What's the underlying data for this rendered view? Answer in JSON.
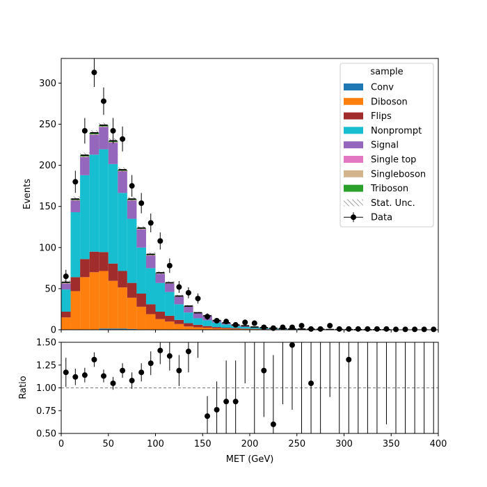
{
  "chart_data": [
    {
      "type": "bar",
      "stacked": true,
      "ylabel": "Events",
      "xlim": [
        0,
        400
      ],
      "ylim": [
        0,
        330
      ],
      "yticks": [
        0,
        50,
        100,
        150,
        200,
        250,
        300
      ],
      "bin_edges": [
        0,
        10,
        20,
        30,
        40,
        50,
        60,
        70,
        80,
        90,
        100,
        110,
        120,
        130,
        140,
        150,
        160,
        170,
        180,
        190,
        200,
        210,
        220,
        230,
        240,
        250,
        260,
        270,
        280,
        290,
        300,
        310,
        320,
        330,
        340,
        350,
        360,
        370,
        380,
        390,
        400
      ],
      "series": [
        {
          "name": "Conv",
          "color": "#1f77b4",
          "values": [
            0,
            0,
            0,
            0,
            1.5,
            1.5,
            1.5,
            1,
            0,
            0,
            0,
            0,
            0,
            0,
            0,
            0,
            0,
            0,
            0,
            0,
            0,
            0,
            0,
            0,
            0,
            0,
            0,
            0,
            0,
            0,
            0,
            0,
            0,
            0,
            0,
            0,
            0,
            0,
            0,
            0
          ]
        },
        {
          "name": "Diboson",
          "color": "#ff7f0e",
          "values": [
            15,
            47,
            64,
            70,
            70,
            58,
            50,
            38,
            28,
            19,
            13,
            10,
            7,
            4,
            3,
            2.5,
            1.8,
            1.5,
            1.2,
            1,
            0.8,
            0.6,
            0.5,
            0.4,
            0.3,
            0.3,
            0.2,
            0.2,
            0.1,
            0.1,
            0.1,
            0,
            0,
            0,
            0,
            0,
            0,
            0,
            0,
            0
          ]
        },
        {
          "name": "Flips",
          "color": "#a02c2c",
          "values": [
            7,
            17,
            22,
            25,
            23,
            21,
            20,
            18,
            16,
            12,
            9,
            7,
            5,
            4,
            3,
            2,
            1.5,
            1,
            0.8,
            0.5,
            0.4,
            0.3,
            0.2,
            0.2,
            0.1,
            0.1,
            0.1,
            0,
            0,
            0,
            0,
            0,
            0,
            0,
            0,
            0,
            0,
            0,
            0,
            0
          ]
        },
        {
          "name": "Nonprompt",
          "color": "#17becf",
          "values": [
            27,
            79,
            102,
            118,
            125,
            121,
            95,
            78,
            56,
            44,
            35,
            29,
            19,
            13,
            8,
            7,
            5.5,
            4,
            2.5,
            2,
            1.5,
            1,
            0.8,
            0.6,
            0.5,
            0.4,
            0.3,
            0.3,
            0.2,
            0.2,
            0.1,
            0.1,
            0.1,
            0.1,
            0.1,
            0,
            0,
            0,
            0,
            0
          ]
        },
        {
          "name": "Signal",
          "color": "#9467bd",
          "values": [
            7,
            14,
            22,
            24,
            27,
            26,
            26,
            22,
            22,
            15,
            11,
            10,
            9,
            7,
            6,
            5,
            2,
            1.5,
            1,
            1,
            0.5,
            0.5,
            0.3,
            0.2,
            0.2,
            0.1,
            0.1,
            0.1,
            0,
            0,
            0,
            0,
            0,
            0,
            0,
            0,
            0,
            0,
            0,
            0
          ]
        },
        {
          "name": "Single top",
          "color": "#e377c2",
          "values": [
            0.5,
            0.5,
            0.5,
            0.5,
            0.5,
            0.5,
            0.5,
            0.5,
            0.5,
            0.5,
            0.3,
            0.3,
            0.3,
            0.2,
            0.2,
            0.2,
            0.1,
            0.1,
            0.1,
            0.1,
            0,
            0,
            0,
            0,
            0,
            0,
            0,
            0,
            0,
            0,
            0,
            0,
            0,
            0,
            0,
            0,
            0,
            0,
            0,
            0
          ]
        },
        {
          "name": "Singleboson",
          "color": "#d2b48c",
          "values": [
            0.3,
            0.3,
            0.3,
            0.3,
            0.3,
            0.3,
            0.3,
            0.3,
            0.3,
            0.3,
            0.2,
            0.2,
            0.2,
            0.1,
            0.1,
            0.1,
            0.1,
            0.1,
            0,
            0,
            0,
            0,
            0,
            0,
            0,
            0,
            0,
            0,
            0,
            0,
            0,
            0,
            0,
            0,
            0,
            0,
            0,
            0,
            0,
            0
          ]
        },
        {
          "name": "Triboson",
          "color": "#2ca02c",
          "values": [
            1,
            1.2,
            1.5,
            1.7,
            1.5,
            1.5,
            1.3,
            1.2,
            1,
            1,
            0.8,
            0.7,
            0.5,
            0.5,
            0.4,
            0.3,
            0.3,
            0.2,
            0.2,
            0.2,
            0.1,
            0.1,
            0.1,
            0.1,
            0,
            0,
            0,
            0,
            0,
            0,
            0,
            0,
            0,
            0,
            0,
            0,
            0,
            0,
            0,
            0
          ]
        }
      ],
      "stat_unc": {
        "name": "Stat. Unc.",
        "color": "#888888",
        "rel": [
          0.04,
          0.02,
          0.015,
          0.013,
          0.012,
          0.013,
          0.015,
          0.017,
          0.02,
          0.025,
          0.03,
          0.035,
          0.04,
          0.05,
          0.06,
          0.07,
          0.08,
          0.1,
          0.12,
          0.14,
          0.16,
          0.2,
          0.25,
          0.3,
          0.35,
          0.4,
          0.45,
          0.5,
          0.5,
          0.5,
          0.5,
          0.5,
          0.5,
          0.5,
          0.5,
          0.5,
          0.5,
          0.5,
          0.5,
          0.5
        ]
      },
      "data": {
        "name": "Data",
        "color": "#000000",
        "values": [
          65,
          180,
          242,
          313,
          278,
          242,
          232,
          175,
          154,
          130,
          108,
          78,
          52,
          45,
          38,
          16,
          11,
          10,
          6,
          9,
          8,
          3,
          2,
          3,
          3,
          5,
          1,
          1,
          5,
          1,
          1,
          1,
          1,
          1,
          1,
          0.5,
          0.5,
          0.5,
          0.5,
          0.5
        ],
        "err": [
          8,
          13.4,
          15.6,
          17.7,
          16.7,
          15.6,
          15.2,
          13.2,
          12.4,
          11.4,
          10.4,
          8.8,
          7.2,
          6.7,
          6.2,
          4,
          3.3,
          3.2,
          2.4,
          3,
          2.8,
          1.7,
          1.4,
          1.7,
          1.7,
          2.2,
          1,
          1,
          2.2,
          1,
          1,
          1,
          1,
          1,
          1,
          0.7,
          0.7,
          0.7,
          0.7,
          0.7
        ]
      },
      "legend": {
        "title": "sample",
        "placement": "top-right"
      }
    },
    {
      "type": "scatter",
      "xlabel": "MET (GeV)",
      "ylabel": "Ratio",
      "xlim": [
        0,
        400
      ],
      "ylim": [
        0.5,
        1.5
      ],
      "xticks": [
        0,
        50,
        100,
        150,
        200,
        250,
        300,
        350,
        400
      ],
      "yticks": [
        0.5,
        0.75,
        1.0,
        1.25,
        1.5
      ],
      "ytick_labels": [
        "0.50",
        "0.75",
        "1.00",
        "1.25",
        "1.50"
      ],
      "reference_line": 1.0,
      "x": [
        5,
        15,
        25,
        35,
        45,
        55,
        65,
        75,
        85,
        95,
        105,
        115,
        125,
        135,
        145,
        155,
        165,
        175,
        185,
        195,
        205,
        215,
        225,
        235,
        245,
        255,
        265,
        275,
        285,
        295,
        305,
        315,
        325,
        335,
        345,
        355,
        365,
        375,
        385,
        395
      ],
      "y": [
        1.17,
        1.12,
        1.14,
        1.31,
        1.13,
        1.05,
        1.19,
        1.08,
        1.17,
        1.27,
        1.41,
        1.35,
        1.19,
        1.4,
        null,
        0.69,
        0.76,
        0.85,
        0.85,
        null,
        null,
        1.19,
        0.6,
        null,
        1.47,
        null,
        1.05,
        null,
        null,
        null,
        1.31,
        null,
        null,
        null,
        null,
        null,
        null,
        null,
        null,
        null
      ],
      "y_lo": [
        1.01,
        1.03,
        1.06,
        1.23,
        1.06,
        0.98,
        1.11,
        0.99,
        1.07,
        1.14,
        1.26,
        1.19,
        1.02,
        1.17,
        1.33,
        0.5,
        0.5,
        0.5,
        0.5,
        1.05,
        0.5,
        0.68,
        0.5,
        0.82,
        0.76,
        0.5,
        0.5,
        0.5,
        0.9,
        0.5,
        0.5,
        0.5,
        0.5,
        0.5,
        0.6,
        0.5,
        0.5,
        0.5,
        0.5,
        0.5
      ],
      "y_hi": [
        1.33,
        1.21,
        1.22,
        1.39,
        1.2,
        1.12,
        1.27,
        1.17,
        1.27,
        1.4,
        1.5,
        1.5,
        1.36,
        1.5,
        1.5,
        0.91,
        1.07,
        1.3,
        1.3,
        1.5,
        1.5,
        1.5,
        1.36,
        1.5,
        1.5,
        1.5,
        1.5,
        1.5,
        1.5,
        1.5,
        1.5,
        1.5,
        1.5,
        1.5,
        1.5,
        1.5,
        1.5,
        1.5,
        1.5,
        1.5
      ]
    }
  ]
}
